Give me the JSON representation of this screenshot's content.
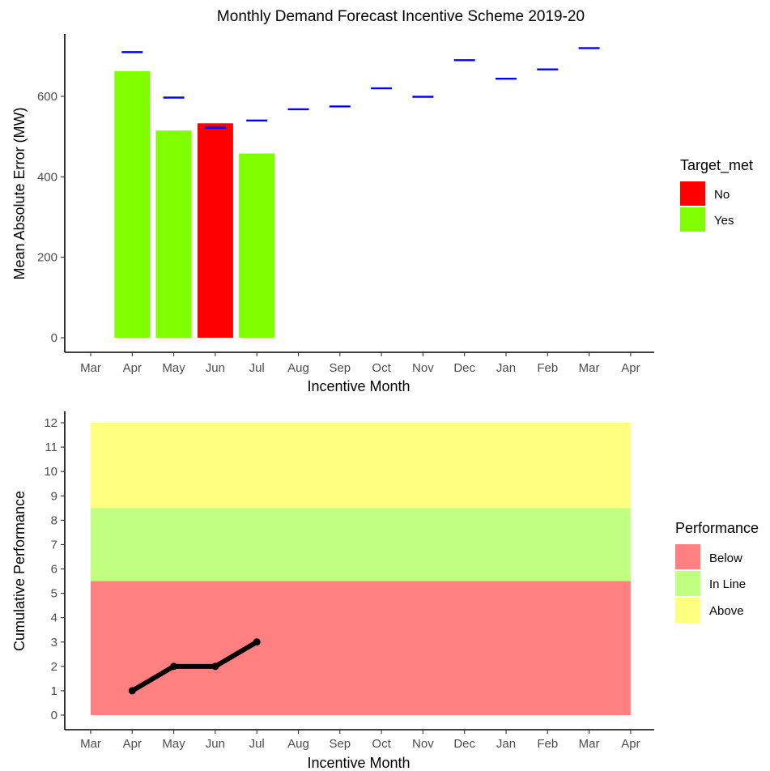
{
  "figure_title": "Monthly Demand Forecast Incentive Scheme 2019-20",
  "chart_data": [
    {
      "type": "bar",
      "title": "Monthly Demand Forecast Incentive Scheme 2019-20",
      "xlabel": "Incentive Month",
      "ylabel": "Mean Absolute Error (MW)",
      "x_ticks": [
        "Mar",
        "Apr",
        "May",
        "Jun",
        "Jul",
        "Aug",
        "Sep",
        "Oct",
        "Nov",
        "Dec",
        "Jan",
        "Feb",
        "Mar",
        "Apr"
      ],
      "y_ticks": [
        0,
        200,
        400,
        600
      ],
      "ylim": [
        -22,
        752
      ],
      "grid": false,
      "legend": {
        "title": "Target_met",
        "position": "right",
        "entries": [
          {
            "label": "No",
            "color": "#ff0000"
          },
          {
            "label": "Yes",
            "color": "#80ff00"
          }
        ]
      },
      "bars": [
        {
          "month": "Apr",
          "value": 663,
          "target_met": "Yes"
        },
        {
          "month": "May",
          "value": 515,
          "target_met": "Yes"
        },
        {
          "month": "Jun",
          "value": 533,
          "target_met": "No"
        },
        {
          "month": "Jul",
          "value": 458,
          "target_met": "Yes"
        }
      ],
      "targets": {
        "color": "#0000ff",
        "points": [
          {
            "month_index": 1,
            "value": 710
          },
          {
            "month_index": 2,
            "value": 597
          },
          {
            "month_index": 3,
            "value": 522
          },
          {
            "month_index": 4,
            "value": 540
          },
          {
            "month_index": 5,
            "value": 568
          },
          {
            "month_index": 6,
            "value": 575
          },
          {
            "month_index": 7,
            "value": 620
          },
          {
            "month_index": 8,
            "value": 599
          },
          {
            "month_index": 9,
            "value": 690
          },
          {
            "month_index": 10,
            "value": 644
          },
          {
            "month_index": 11,
            "value": 667
          },
          {
            "month_index": 12,
            "value": 720
          }
        ]
      }
    },
    {
      "type": "line",
      "title": "",
      "xlabel": "Incentive Month",
      "ylabel": "Cumulative Performance",
      "x_ticks": [
        "Mar",
        "Apr",
        "May",
        "Jun",
        "Jul",
        "Aug",
        "Sep",
        "Oct",
        "Nov",
        "Dec",
        "Jan",
        "Feb",
        "Mar",
        "Apr"
      ],
      "y_ticks": [
        0,
        1,
        2,
        3,
        4,
        5,
        6,
        7,
        8,
        9,
        10,
        11,
        12
      ],
      "ylim": [
        -0.6,
        12.6
      ],
      "grid": false,
      "legend": {
        "title": "Performance",
        "position": "right",
        "entries": [
          {
            "label": "Below",
            "color": "#ff8080"
          },
          {
            "label": "In Line",
            "color": "#c0ff80"
          },
          {
            "label": "Above",
            "color": "#ffff80"
          }
        ]
      },
      "bands": [
        {
          "label": "Below",
          "from": 0,
          "to": 5.5,
          "color": "#ff8080"
        },
        {
          "label": "In Line",
          "from": 5.5,
          "to": 8.5,
          "color": "#c0ff80"
        },
        {
          "label": "Above",
          "from": 8.5,
          "to": 12,
          "color": "#ffff80"
        }
      ],
      "band_x_range": [
        0,
        13
      ],
      "series": [
        {
          "color": "#000000",
          "points": [
            {
              "month_index": 1,
              "value": 1
            },
            {
              "month_index": 2,
              "value": 2
            },
            {
              "month_index": 3,
              "value": 2
            },
            {
              "month_index": 4,
              "value": 3
            }
          ]
        }
      ]
    }
  ]
}
